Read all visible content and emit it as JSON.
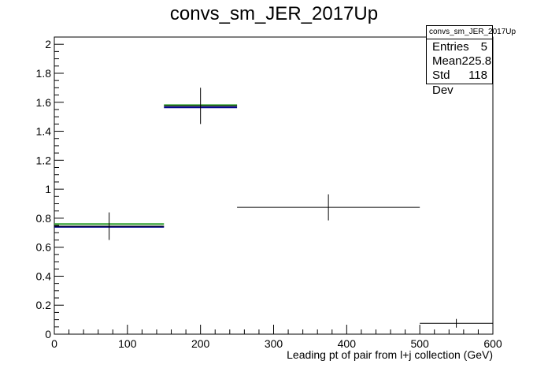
{
  "title": "convs_sm_JER_2017Up",
  "stats": {
    "name": "convs_sm_JER_2017Up",
    "entries_label": "Entries",
    "entries": "5",
    "mean_label": "Mean",
    "mean": "225.8",
    "std_label": "Std Dev",
    "std": "118"
  },
  "chart_data": {
    "type": "histogram",
    "title": "convs_sm_JER_2017Up",
    "xlabel": "Leading pt of pair from l+j collection (GeV)",
    "ylabel": "",
    "xlim": [
      0,
      600
    ],
    "ylim": [
      0,
      2.05
    ],
    "xticks": [
      0,
      100,
      200,
      300,
      400,
      500,
      600
    ],
    "yticks": [
      0,
      0.2,
      0.4,
      0.6,
      0.8,
      1,
      1.2,
      1.4,
      1.6,
      1.8,
      2
    ],
    "bins": [
      {
        "low": 0,
        "high": 150,
        "center": 75,
        "value": 0.745,
        "error": 0.095
      },
      {
        "low": 150,
        "high": 250,
        "center": 200,
        "value": 1.575,
        "error": 0.125
      },
      {
        "low": 250,
        "high": 500,
        "center": 375,
        "value": 0.875,
        "error": 0.09
      },
      {
        "low": 500,
        "high": 600,
        "center": 550,
        "value": 0.075,
        "error": 0.03
      }
    ],
    "overlays": [
      {
        "color": "#2e9e2e",
        "segments": [
          {
            "low": 0,
            "high": 150,
            "value": 0.76
          },
          {
            "low": 150,
            "high": 250,
            "value": 1.58
          }
        ]
      },
      {
        "color": "#00008b",
        "segments": [
          {
            "low": 0,
            "high": 150,
            "value": 0.74
          },
          {
            "low": 150,
            "high": 250,
            "value": 1.565
          }
        ]
      }
    ],
    "grid": false,
    "colors": {
      "data": "#000000"
    }
  }
}
